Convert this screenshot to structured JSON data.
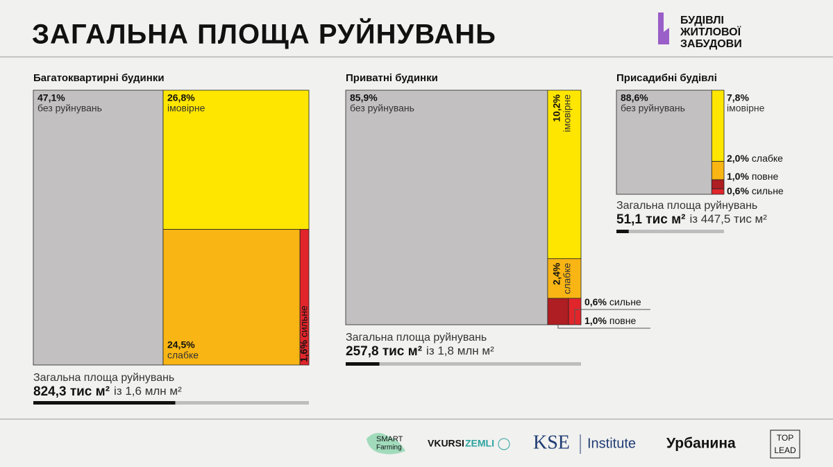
{
  "header": {
    "title": "ЗАГАЛЬНА ПЛОЩА РУЙНУВАНЬ",
    "logo_lines": [
      "БУДІВЛІ",
      "ЖИТЛОВОЇ",
      "ЗАБУДОВИ"
    ]
  },
  "chart_data": [
    {
      "type": "treemap",
      "title": "Багатоквартирні будинки",
      "categories": [
        "без руйнувань",
        "імовірне",
        "слабке",
        "сильне"
      ],
      "values": [
        47.1,
        26.8,
        24.5,
        1.6
      ],
      "value_labels": [
        "47,1%",
        "26,8%",
        "24,5%",
        "1,6%"
      ],
      "colors": [
        "#c2c0c0",
        "#ffe600",
        "#f8b514",
        "#e0262b"
      ],
      "subtitle": "Загальна площа руйнувань",
      "damaged_area": {
        "value": 824.3,
        "label": "824,3 тис м²"
      },
      "total_area": {
        "value": 1600,
        "label": "із 1,6 млн м²"
      }
    },
    {
      "type": "treemap",
      "title": "Приватні будинки",
      "categories": [
        "без руйнувань",
        "імовірне",
        "слабке",
        "повне",
        "сильне"
      ],
      "values": [
        85.9,
        10.2,
        2.4,
        1.0,
        0.6
      ],
      "value_labels": [
        "85,9%",
        "10,2%",
        "2,4%",
        "1,0%",
        "0,6%"
      ],
      "colors": [
        "#c2c0c0",
        "#ffe600",
        "#f8b514",
        "#ae1e22",
        "#e0262b"
      ],
      "subtitle": "Загальна площа руйнувань",
      "damaged_area": {
        "value": 257.8,
        "label": "257,8 тис м²"
      },
      "total_area": {
        "value": 1800,
        "label": "із 1,8 млн м²"
      }
    },
    {
      "type": "treemap",
      "title": "Присадибні будівлі",
      "categories": [
        "без руйнувань",
        "імовірне",
        "слабке",
        "повне",
        "сильне"
      ],
      "values": [
        88.6,
        7.8,
        2.0,
        1.0,
        0.6
      ],
      "value_labels": [
        "88,6%",
        "7,8%",
        "2,0%",
        "1,0%",
        "0,6%"
      ],
      "colors": [
        "#c2c0c0",
        "#ffe600",
        "#f8b514",
        "#ae1e22",
        "#e0262b"
      ],
      "subtitle": "Загальна площа руйнувань",
      "damaged_area": {
        "value": 51.1,
        "label": "51,1 тис м²"
      },
      "total_area": {
        "value": 447.5,
        "label": "із 447,5 тис м²"
      }
    }
  ],
  "footer": {
    "logos": [
      "SMART",
      "Farming",
      "VKURSI",
      "ZEMLI",
      "KSE",
      "Institute",
      "Урбанина",
      "TOP",
      "LEAD"
    ]
  }
}
